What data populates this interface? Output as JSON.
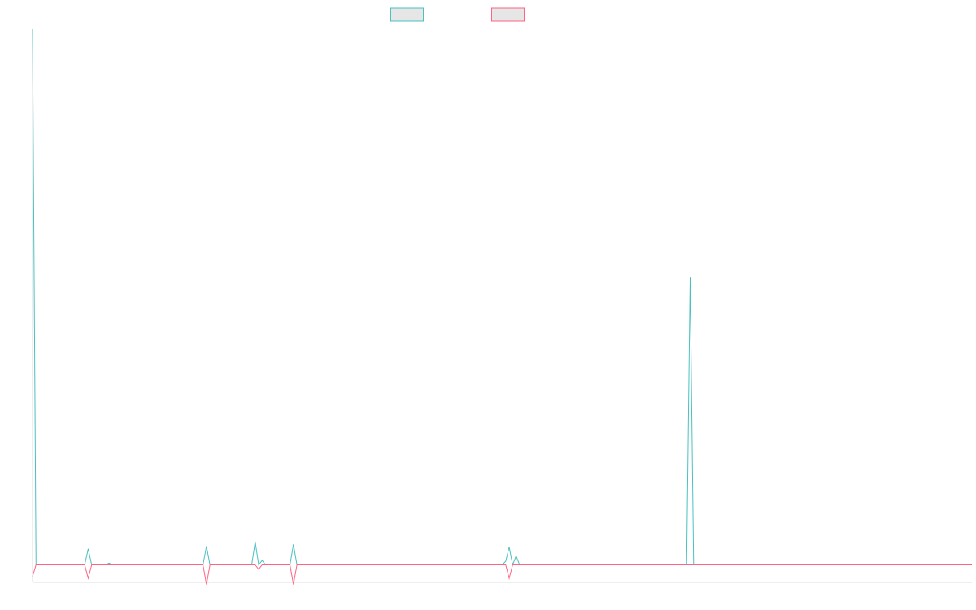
{
  "chart_data": {
    "type": "line",
    "title": "",
    "xlabel": "",
    "ylabel": "",
    "grid": false,
    "legend": {
      "position": "top-center",
      "entries": [
        "",
        ""
      ]
    },
    "x": [
      0,
      1,
      2,
      3,
      4,
      5,
      6,
      7,
      8,
      9,
      10,
      11,
      12,
      13,
      14,
      15,
      16,
      17,
      18,
      19,
      20,
      21,
      22,
      23,
      24,
      25,
      26,
      27,
      28,
      29,
      30,
      31,
      32,
      33,
      34,
      35,
      36,
      37,
      38,
      39,
      40,
      41,
      42,
      43,
      44,
      45,
      46,
      47,
      48,
      49,
      50,
      51,
      52,
      53,
      54,
      55,
      56,
      57,
      58,
      59,
      60,
      61,
      62,
      63,
      64,
      65,
      66,
      67,
      68,
      69,
      70,
      71,
      72,
      73,
      74,
      75,
      76,
      77,
      78,
      79,
      80,
      81,
      82,
      83,
      84,
      85,
      86,
      87,
      88,
      89,
      90,
      91,
      92,
      93,
      94,
      95,
      96,
      97,
      98,
      99,
      100,
      101,
      102,
      103,
      104,
      105,
      106,
      107,
      108,
      109,
      110,
      111,
      112,
      113,
      114,
      115,
      116,
      117,
      118,
      119,
      120,
      121,
      122,
      123,
      124,
      125,
      126,
      127,
      128,
      129,
      130,
      131,
      132,
      133,
      134,
      135,
      136,
      137,
      138,
      139,
      140,
      141,
      142,
      143,
      144,
      145,
      146,
      147,
      148,
      149,
      150,
      151,
      152,
      153,
      154,
      155,
      156,
      157,
      158,
      159,
      160,
      161,
      162,
      163,
      164,
      165,
      166,
      167,
      168,
      169,
      170,
      171,
      172,
      173,
      174,
      175,
      176,
      177,
      178,
      179,
      180,
      181,
      182,
      183,
      184,
      185,
      186,
      187,
      188,
      189,
      190,
      191,
      192,
      193,
      194,
      195,
      196,
      197,
      198,
      199,
      200,
      201,
      202,
      203,
      204,
      205,
      206,
      207,
      208,
      209,
      210,
      211,
      212,
      213,
      214,
      215,
      216,
      217,
      218,
      219,
      220,
      221,
      222,
      223,
      224,
      225,
      226,
      227,
      228,
      229,
      230,
      231,
      232,
      233,
      234,
      235,
      236,
      237,
      238,
      239,
      240,
      241,
      242,
      243,
      244,
      245,
      246,
      247,
      248,
      249,
      250,
      251,
      252,
      253,
      254,
      255,
      256,
      257,
      258,
      259,
      260,
      261,
      262,
      263,
      264,
      265,
      266,
      267,
      268,
      269,
      270
    ],
    "xlim": [
      0,
      270
    ],
    "ylim": [
      -20,
      600
    ],
    "series": [
      {
        "color": "#4bc0c0",
        "points": [
          [
            0,
            600
          ],
          [
            1,
            0
          ],
          [
            15,
            0
          ],
          [
            16,
            18
          ],
          [
            17,
            0
          ],
          [
            21,
            0
          ],
          [
            22,
            2
          ],
          [
            23,
            0
          ],
          [
            49,
            0
          ],
          [
            50,
            21
          ],
          [
            51,
            0
          ],
          [
            63,
            0
          ],
          [
            64,
            26
          ],
          [
            65,
            0
          ],
          [
            66,
            5
          ],
          [
            67,
            0
          ],
          [
            74,
            0
          ],
          [
            75,
            23
          ],
          [
            76,
            0
          ],
          [
            135,
            0
          ],
          [
            136,
            4
          ],
          [
            137,
            20
          ],
          [
            138,
            0
          ],
          [
            139,
            10
          ],
          [
            140,
            0
          ],
          [
            188,
            0
          ],
          [
            189,
            322
          ],
          [
            190,
            0
          ],
          [
            270,
            0
          ]
        ]
      },
      {
        "color": "#ff6384",
        "points": [
          [
            0,
            -13
          ],
          [
            1,
            0
          ],
          [
            15,
            0
          ],
          [
            16,
            -15
          ],
          [
            17,
            0
          ],
          [
            49,
            0
          ],
          [
            50,
            -22
          ],
          [
            51,
            0
          ],
          [
            64,
            0
          ],
          [
            65,
            -5
          ],
          [
            66,
            0
          ],
          [
            74,
            0
          ],
          [
            75,
            -22
          ],
          [
            76,
            0
          ],
          [
            136,
            0
          ],
          [
            137,
            -15
          ],
          [
            138,
            0
          ],
          [
            270,
            0
          ]
        ]
      }
    ]
  }
}
